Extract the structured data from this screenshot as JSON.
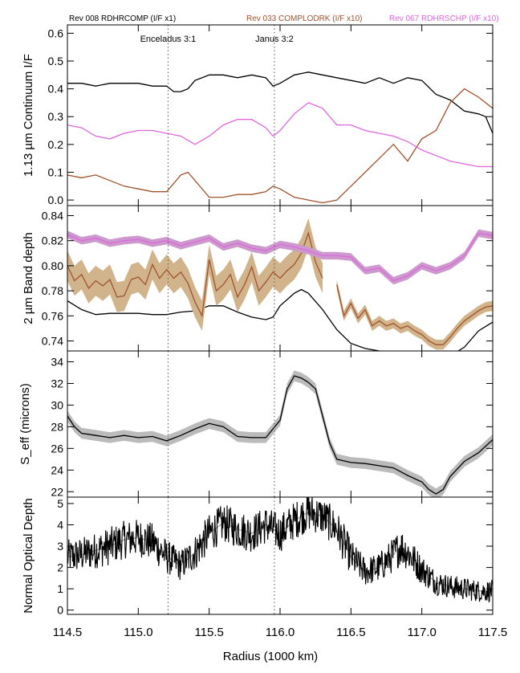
{
  "header": {
    "legend": [
      {
        "label": "Rev 008 RDHRCOMP (I/F x1)",
        "color": "#000000"
      },
      {
        "label": "Rev 033 COMPLODRK (I/F x10)",
        "color": "#a0522d"
      },
      {
        "label": "Rev 067 RDHRSCHP (I/F x10)",
        "color": "#e066e0"
      }
    ]
  },
  "resonances": [
    {
      "label": "Enceladus 3:1",
      "x": 115.21
    },
    {
      "label": "Janus 3:2",
      "x": 115.96
    }
  ],
  "colors": {
    "rev008": "#000000",
    "rev033": "#a0522d",
    "rev033_band": "#d2b48c",
    "rev067": "#e066e0",
    "rev067_band": "#cc99cc",
    "seff_band": "#bbbbbb",
    "smooth": "#aaaaaa"
  },
  "xaxis": {
    "label": "Radius (1000 km)",
    "range": [
      114.5,
      117.5
    ],
    "ticks": [
      114.5,
      115.0,
      115.5,
      116.0,
      116.5,
      117.0,
      117.5
    ],
    "tick_labels": [
      "114.5",
      "115.0",
      "115.5",
      "116.0",
      "116.5",
      "117.0",
      "117.5"
    ]
  },
  "chart_data": [
    {
      "type": "line",
      "ylabel": "1.13 µm Continuum I/F",
      "ylim": [
        -0.02,
        0.63
      ],
      "yticks": [
        0.0,
        0.1,
        0.2,
        0.3,
        0.4,
        0.5,
        0.6
      ],
      "ytick_labels": [
        "0.0",
        "0.1",
        "0.2",
        "0.3",
        "0.4",
        "0.5",
        "0.6"
      ],
      "series": [
        {
          "name": "Rev 008 RDHRCOMP (I/F x1)",
          "color": "#000000",
          "x": [
            114.5,
            114.6,
            114.7,
            114.8,
            114.9,
            115.0,
            115.1,
            115.2,
            115.25,
            115.3,
            115.35,
            115.4,
            115.5,
            115.6,
            115.7,
            115.8,
            115.9,
            115.95,
            116.0,
            116.1,
            116.2,
            116.3,
            116.4,
            116.5,
            116.6,
            116.7,
            116.8,
            116.9,
            117.0,
            117.1,
            117.2,
            117.3,
            117.4,
            117.45,
            117.5
          ],
          "y": [
            0.42,
            0.42,
            0.41,
            0.42,
            0.42,
            0.42,
            0.41,
            0.41,
            0.39,
            0.39,
            0.4,
            0.43,
            0.45,
            0.45,
            0.44,
            0.45,
            0.44,
            0.41,
            0.42,
            0.45,
            0.46,
            0.45,
            0.44,
            0.43,
            0.42,
            0.44,
            0.42,
            0.44,
            0.43,
            0.38,
            0.36,
            0.32,
            0.31,
            0.3,
            0.24
          ]
        },
        {
          "name": "Rev 033 COMPLODRK (I/F x10)",
          "color": "#a0522d",
          "x": [
            114.5,
            114.6,
            114.7,
            114.8,
            114.9,
            115.0,
            115.1,
            115.2,
            115.3,
            115.35,
            115.4,
            115.5,
            115.6,
            115.7,
            115.8,
            115.9,
            115.95,
            116.0,
            116.1,
            116.2,
            116.3,
            116.4,
            116.5,
            116.6,
            116.7,
            116.8,
            116.85,
            116.9,
            117.0,
            117.1,
            117.2,
            117.3,
            117.4,
            117.5
          ],
          "y": [
            0.09,
            0.08,
            0.09,
            0.07,
            0.05,
            0.04,
            0.03,
            0.03,
            0.09,
            0.1,
            0.07,
            0.01,
            0.01,
            0.02,
            0.02,
            0.03,
            0.05,
            0.04,
            0.01,
            0.0,
            -0.01,
            0.0,
            0.05,
            0.1,
            0.15,
            0.2,
            0.17,
            0.14,
            0.22,
            0.25,
            0.35,
            0.4,
            0.37,
            0.33
          ]
        },
        {
          "name": "Rev 067 RDHRSCHP (I/F x10)",
          "color": "#e066e0",
          "x": [
            114.5,
            114.6,
            114.7,
            114.8,
            114.9,
            115.0,
            115.1,
            115.2,
            115.3,
            115.4,
            115.5,
            115.6,
            115.7,
            115.8,
            115.9,
            115.95,
            116.0,
            116.1,
            116.2,
            116.3,
            116.4,
            116.5,
            116.6,
            116.7,
            116.8,
            116.9,
            117.0,
            117.1,
            117.2,
            117.3,
            117.4,
            117.5
          ],
          "y": [
            0.27,
            0.26,
            0.23,
            0.22,
            0.24,
            0.25,
            0.25,
            0.24,
            0.23,
            0.2,
            0.23,
            0.27,
            0.29,
            0.29,
            0.26,
            0.23,
            0.25,
            0.31,
            0.35,
            0.33,
            0.27,
            0.27,
            0.25,
            0.24,
            0.23,
            0.21,
            0.18,
            0.16,
            0.14,
            0.13,
            0.12,
            0.12
          ]
        }
      ]
    },
    {
      "type": "line",
      "ylabel": "2 µm Band depth",
      "ylim": [
        0.732,
        0.848
      ],
      "yticks": [
        0.74,
        0.76,
        0.78,
        0.8,
        0.82,
        0.84
      ],
      "ytick_labels": [
        "0.74",
        "0.76",
        "0.78",
        "0.80",
        "0.82",
        "0.84"
      ],
      "series": [
        {
          "name": "Rev 008 RDHRCOMP (I/F x1)",
          "color": "#000000",
          "x": [
            114.5,
            114.6,
            114.7,
            114.8,
            114.9,
            115.0,
            115.1,
            115.2,
            115.3,
            115.4,
            115.5,
            115.6,
            115.7,
            115.8,
            115.9,
            115.95,
            116.0,
            116.1,
            116.15,
            116.2,
            116.3,
            116.4,
            116.5,
            116.6,
            116.7,
            116.8,
            116.9,
            117.0,
            117.1,
            117.2,
            117.3,
            117.4,
            117.5
          ],
          "y": [
            0.772,
            0.765,
            0.761,
            0.762,
            0.762,
            0.762,
            0.761,
            0.761,
            0.763,
            0.764,
            0.768,
            0.768,
            0.763,
            0.759,
            0.757,
            0.759,
            0.768,
            0.778,
            0.781,
            0.778,
            0.765,
            0.749,
            0.738,
            0.734,
            0.732,
            0.731,
            0.728,
            0.727,
            0.725,
            0.728,
            0.735,
            0.748,
            0.755
          ],
          "band": 0.0
        },
        {
          "name": "Rev 033 COMPLODRK (I/F x10)",
          "color": "#a0522d",
          "x": [
            114.5,
            114.55,
            114.6,
            114.65,
            114.7,
            114.75,
            114.8,
            114.85,
            114.9,
            114.95,
            115.0,
            115.05,
            115.1,
            115.15,
            115.2,
            115.25,
            115.3,
            115.35,
            115.4,
            115.45,
            115.5,
            115.55,
            115.6,
            115.65,
            115.7,
            115.75,
            115.8,
            115.85,
            115.9,
            115.95,
            116.0,
            116.05,
            116.1,
            116.15,
            116.2,
            116.25,
            116.3
          ],
          "y": [
            0.8,
            0.788,
            0.793,
            0.782,
            0.788,
            0.784,
            0.789,
            0.775,
            0.776,
            0.789,
            0.791,
            0.785,
            0.801,
            0.79,
            0.797,
            0.79,
            0.795,
            0.786,
            0.771,
            0.76,
            0.805,
            0.78,
            0.785,
            0.793,
            0.775,
            0.785,
            0.799,
            0.78,
            0.787,
            0.795,
            0.79,
            0.796,
            0.801,
            0.81,
            0.826,
            0.803,
            0.79
          ],
          "band": 0.012
        },
        {
          "name": "Rev 033 COMPLODRK (I/F x10) outer",
          "color": "#a0522d",
          "x": [
            116.4,
            116.45,
            116.5,
            116.55,
            116.6,
            116.65,
            116.7,
            116.75,
            116.8,
            116.85,
            116.9,
            116.95,
            117.0,
            117.05,
            117.1,
            117.15,
            117.2,
            117.25,
            117.3,
            117.35,
            117.4,
            117.45,
            117.5
          ],
          "y": [
            0.785,
            0.76,
            0.77,
            0.758,
            0.765,
            0.752,
            0.756,
            0.752,
            0.754,
            0.75,
            0.752,
            0.748,
            0.745,
            0.74,
            0.737,
            0.737,
            0.743,
            0.75,
            0.756,
            0.76,
            0.764,
            0.767,
            0.768
          ],
          "band": 0.004
        },
        {
          "name": "Rev 067 RDHRSCHP (I/F x10)",
          "color": "#e066e0",
          "x": [
            114.5,
            114.6,
            114.7,
            114.8,
            114.9,
            115.0,
            115.1,
            115.2,
            115.3,
            115.4,
            115.5,
            115.6,
            115.7,
            115.8,
            115.9,
            116.0,
            116.1,
            116.2,
            116.3,
            116.4,
            116.5,
            116.6,
            116.7,
            116.8,
            116.9,
            117.0,
            117.1,
            117.2,
            117.3,
            117.4,
            117.5
          ],
          "y": [
            0.825,
            0.82,
            0.822,
            0.818,
            0.82,
            0.821,
            0.818,
            0.82,
            0.816,
            0.819,
            0.822,
            0.815,
            0.818,
            0.814,
            0.812,
            0.817,
            0.815,
            0.812,
            0.808,
            0.808,
            0.807,
            0.796,
            0.798,
            0.788,
            0.792,
            0.8,
            0.796,
            0.8,
            0.808,
            0.826,
            0.824
          ],
          "band": 0.003
        }
      ]
    },
    {
      "type": "line",
      "ylabel": "S_eff (microns)",
      "ylim": [
        21.5,
        35.0
      ],
      "yticks": [
        22,
        24,
        26,
        28,
        30,
        32,
        34
      ],
      "ytick_labels": [
        "22",
        "24",
        "26",
        "28",
        "30",
        "32",
        "34"
      ],
      "series": [
        {
          "name": "S_eff",
          "color": "#000000",
          "x": [
            114.5,
            114.55,
            114.6,
            114.7,
            114.8,
            114.9,
            115.0,
            115.1,
            115.2,
            115.3,
            115.4,
            115.5,
            115.6,
            115.7,
            115.8,
            115.9,
            116.0,
            116.05,
            116.1,
            116.15,
            116.2,
            116.25,
            116.3,
            116.35,
            116.4,
            116.5,
            116.6,
            116.7,
            116.8,
            116.9,
            117.0,
            117.05,
            117.1,
            117.15,
            117.2,
            117.3,
            117.4,
            117.5
          ],
          "y": [
            29.0,
            28.0,
            27.4,
            27.2,
            27.0,
            27.2,
            27.0,
            27.1,
            26.7,
            27.2,
            27.8,
            28.3,
            28.0,
            27.1,
            27.0,
            27.0,
            28.6,
            31.5,
            32.7,
            32.5,
            32.1,
            31.5,
            29.0,
            26.5,
            25.0,
            24.7,
            24.6,
            24.4,
            24.2,
            23.5,
            22.9,
            22.2,
            21.8,
            22.2,
            23.4,
            24.8,
            25.6,
            26.8
          ],
          "band": 0.5
        }
      ]
    },
    {
      "type": "line",
      "ylabel": "Normal Optical Depth",
      "ylim": [
        -0.2,
        5.3
      ],
      "yticks": [
        0,
        1,
        2,
        3,
        4,
        5
      ],
      "ytick_labels": [
        "0",
        "1",
        "2",
        "3",
        "4",
        "5"
      ],
      "series": [
        {
          "name": "Normal Optical Depth (smoothed)",
          "color": "#aaaaaa",
          "x": [
            114.5,
            114.6,
            114.7,
            114.8,
            114.9,
            115.0,
            115.1,
            115.2,
            115.3,
            115.4,
            115.5,
            115.6,
            115.7,
            115.8,
            115.9,
            116.0,
            116.1,
            116.2,
            116.3,
            116.4,
            116.5,
            116.6,
            116.7,
            116.8,
            116.85,
            116.9,
            117.0,
            117.1,
            117.2,
            117.3,
            117.4,
            117.5
          ],
          "y": [
            2.5,
            2.6,
            2.8,
            3.0,
            3.3,
            3.4,
            3.2,
            2.5,
            2.1,
            2.7,
            3.6,
            4.1,
            3.8,
            3.6,
            4.0,
            3.6,
            4.2,
            4.6,
            4.4,
            3.8,
            2.5,
            1.8,
            2.0,
            2.6,
            3.0,
            2.7,
            1.9,
            1.3,
            1.1,
            1.0,
            0.9,
            0.9
          ]
        },
        {
          "name": "Normal Optical Depth (raw)",
          "color": "#000000",
          "x": [
            114.5,
            114.6,
            114.7,
            114.8,
            114.9,
            115.0,
            115.1,
            115.2,
            115.3,
            115.4,
            115.5,
            115.6,
            115.7,
            115.8,
            115.9,
            116.0,
            116.1,
            116.2,
            116.3,
            116.4,
            116.5,
            116.6,
            116.7,
            116.8,
            116.85,
            116.9,
            117.0,
            117.1,
            117.2,
            117.3,
            117.4,
            117.5
          ],
          "y": [
            2.5,
            2.6,
            2.8,
            3.0,
            3.3,
            3.4,
            3.2,
            2.5,
            2.1,
            2.7,
            3.6,
            4.1,
            3.8,
            3.6,
            4.0,
            3.6,
            4.2,
            4.6,
            4.4,
            3.8,
            2.5,
            1.8,
            2.0,
            2.6,
            3.0,
            2.7,
            1.9,
            1.3,
            1.1,
            1.0,
            0.9,
            0.9
          ],
          "noise": 0.9
        }
      ]
    }
  ]
}
